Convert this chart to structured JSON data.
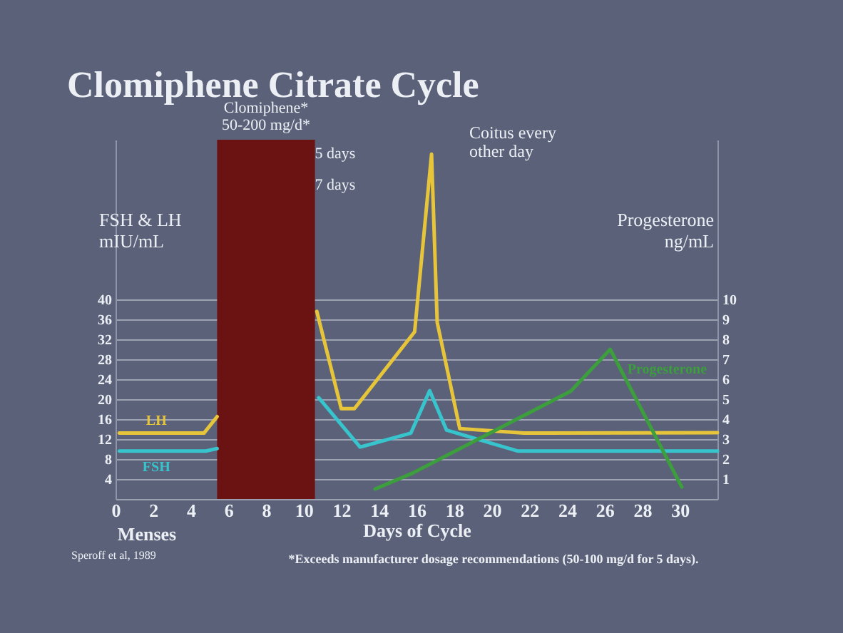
{
  "chart_data": {
    "type": "line",
    "title": "Clomiphene Citrate Cycle",
    "xlabel": "Days of Cycle",
    "ylabel": "FSH & LH mIU/mL",
    "y2label": "Progesterone ng/mL",
    "xlim": [
      0,
      32
    ],
    "xticks": [
      0,
      2,
      4,
      6,
      8,
      10,
      12,
      14,
      16,
      18,
      20,
      22,
      24,
      26,
      28,
      30
    ],
    "ylim": [
      0,
      72
    ],
    "yticks": [
      4,
      8,
      12,
      16,
      20,
      24,
      28,
      32,
      36,
      40
    ],
    "y2lim": [
      0,
      18
    ],
    "y2ticks": [
      1,
      2,
      3,
      4,
      5,
      6,
      7,
      8,
      9,
      10
    ],
    "grid": "y",
    "legend": false,
    "marker": "none",
    "line_style": "solid",
    "series": [
      {
        "name": "LH",
        "color": "#e6c53a",
        "x": [
          0.2,
          4.7,
          5.4,
          8,
          10.7,
          12.0,
          12.7,
          15.9,
          16.8,
          17.1,
          18.3,
          21.7,
          32
        ],
        "values": [
          13.2,
          13.2,
          16.5,
          null,
          37.6,
          18.1,
          18.1,
          33.5,
          69.1,
          35.4,
          14.1,
          13.2,
          13.3
        ]
      },
      {
        "name": "FSH",
        "color": "#38c4cc",
        "x": [
          0.2,
          4.8,
          5.4,
          8,
          10.8,
          13.0,
          15.7,
          16.7,
          17.6,
          21.4,
          32
        ],
        "values": [
          9.6,
          9.6,
          10.1,
          null,
          20.3,
          10.4,
          13.2,
          21.7,
          13.8,
          9.6,
          9.6
        ]
      },
      {
        "name": "Progesterone",
        "color": "#3c9e3c",
        "axis": "y2",
        "x": [
          13.8,
          15.8,
          24.2,
          26.3,
          30.1
        ],
        "values": [
          0.5,
          1.3,
          5.4,
          7.5,
          0.6
        ]
      }
    ],
    "bands": [
      {
        "axis": "x",
        "from": 5.4,
        "to": 10.6,
        "label": "Clomiphene* 50-200 mg/d*",
        "color": "#6b1212"
      }
    ],
    "annotations": [
      "5 days",
      "7 days",
      "Coitus every other day",
      "Menses",
      "*Exceeds manufacturer dosage recommendations (50-100 mg/d for 5 days).",
      "Speroff et al, 1989"
    ]
  }
}
